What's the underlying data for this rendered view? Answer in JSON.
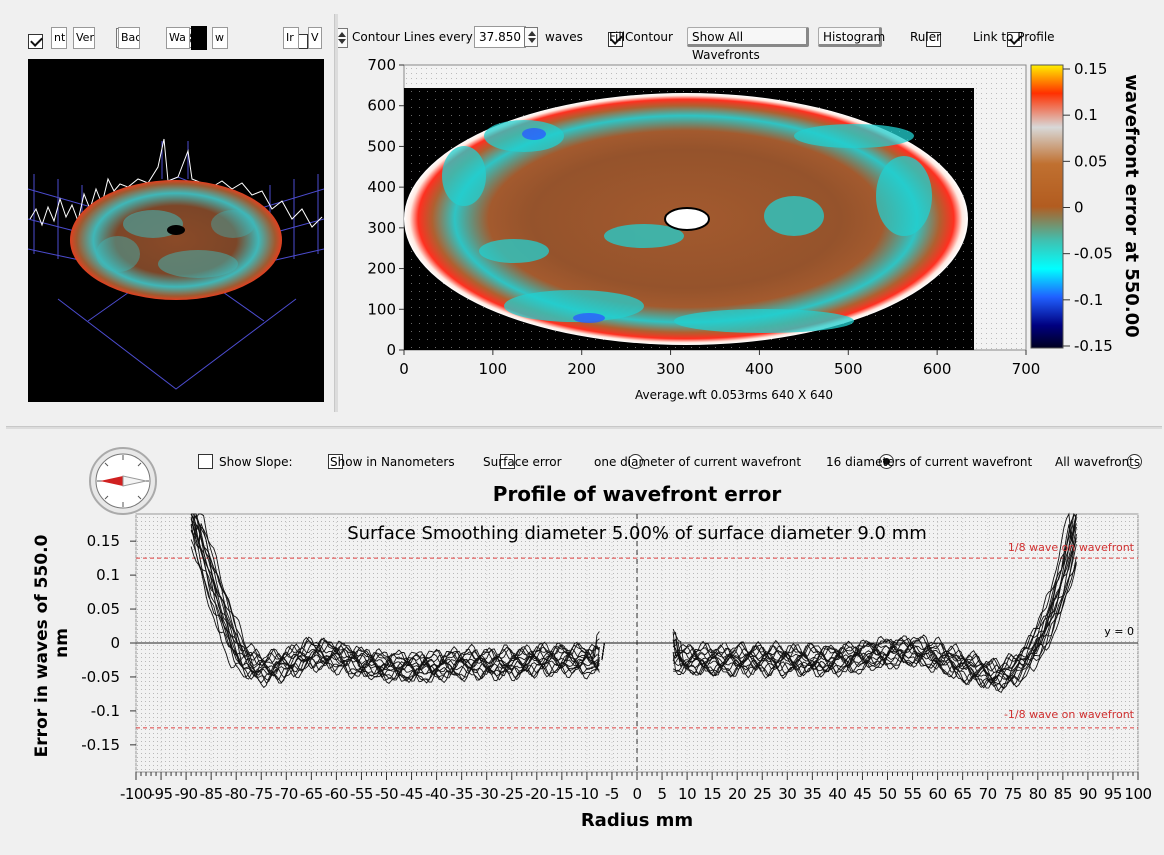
{
  "left_toolbar": {
    "checkbox1_checked": true,
    "field1": "nt",
    "field2": "Ver",
    "field3": "Bac",
    "field4": "Wa",
    "field5": "w",
    "checkbox2_checked": false,
    "field6": "Ir",
    "field7": "V"
  },
  "top_toolbar": {
    "contour_label": "Contour Lines every",
    "contour_value": "37.850",
    "waves_label": "waves",
    "fill_contour_label": "FillContour",
    "fill_contour_checked": true,
    "show_all_label": "Show All Wavefronts",
    "histogram_label": "Histogram",
    "ruler_label": "Ruler",
    "ruler_checked": false,
    "link_label": "Link to Profile",
    "link_checked": true
  },
  "contour_plot": {
    "x_ticks": [
      "0",
      "100",
      "200",
      "300",
      "400",
      "500",
      "600",
      "700"
    ],
    "y_ticks": [
      "0",
      "100",
      "200",
      "300",
      "400",
      "500",
      "600",
      "700"
    ],
    "caption": "Average.wft  0.053rms 640 X 640",
    "colorbar_ticks": [
      "0.15",
      "0.1",
      "0.05",
      "0",
      "-0.05",
      "-0.1",
      "-0.15"
    ],
    "colorbar_title": "wavefront error at 550.00"
  },
  "profile_options": {
    "show_slope_label": "Show Slope:",
    "show_slope_checked": false,
    "nanometers_label": "Show in Nanometers",
    "nanometers_checked": false,
    "surface_error_label": "Surface error",
    "surface_error_checked": false,
    "radio_one_label": "one diameter of current wavefront",
    "radio_sixteen_label": "16 diameters of current wavefront",
    "radio_all_label": "All wavefronts",
    "selected_radio": "16"
  },
  "chart_data": {
    "type": "line",
    "title": "Profile of wavefront error",
    "xlabel": "Radius mm",
    "ylabel": "Error in waves of  550.0 nm",
    "xlim": [
      -100,
      100
    ],
    "ylim": [
      -0.19,
      0.19
    ],
    "x_ticks": [
      "-100",
      "-95",
      "-90",
      "-85",
      "-80",
      "-75",
      "-70",
      "-65",
      "-60",
      "-55",
      "-50",
      "-45",
      "-40",
      "-35",
      "-30",
      "-25",
      "-20",
      "-15",
      "-10",
      "-5",
      "0",
      "5",
      "10",
      "15",
      "20",
      "25",
      "30",
      "35",
      "40",
      "45",
      "50",
      "55",
      "60",
      "65",
      "70",
      "75",
      "80",
      "85",
      "90",
      "95",
      "100"
    ],
    "y_ticks": [
      "0.15",
      "0.1",
      "0.05",
      "0",
      "-0.05",
      "-0.1",
      "-0.15"
    ],
    "annotation": "Surface Smoothing diameter   5.00% of surface diameter    9.0 mm",
    "upper_ref_label": "1/8 wave on wavefront",
    "upper_ref_value": 0.125,
    "lower_ref_label": "-1/8 wave on wavefront",
    "lower_ref_value": -0.125,
    "zero_label": "y = 0",
    "series_count": 16,
    "mean_profile": {
      "x": [
        -89,
        -86,
        -84,
        -82,
        -80,
        -78,
        -75,
        -70,
        -65,
        -60,
        -55,
        -50,
        -45,
        -40,
        -35,
        -30,
        -25,
        -20,
        -15,
        -10,
        -7,
        -7,
        7,
        7,
        10,
        15,
        20,
        25,
        30,
        35,
        40,
        45,
        50,
        55,
        60,
        65,
        70,
        72,
        75,
        78,
        80,
        82,
        84,
        86,
        88
      ],
      "y": [
        0.19,
        0.12,
        0.07,
        0.03,
        -0.01,
        -0.03,
        -0.04,
        -0.03,
        -0.015,
        -0.02,
        -0.03,
        -0.035,
        -0.035,
        -0.035,
        -0.03,
        -0.03,
        -0.03,
        -0.025,
        -0.025,
        -0.025,
        -0.025,
        0.0,
        0.0,
        -0.025,
        -0.025,
        -0.025,
        -0.025,
        -0.025,
        -0.025,
        -0.025,
        -0.025,
        -0.02,
        -0.015,
        -0.01,
        -0.02,
        -0.035,
        -0.045,
        -0.05,
        -0.04,
        -0.02,
        0.0,
        0.03,
        0.07,
        0.12,
        0.19
      ]
    }
  }
}
